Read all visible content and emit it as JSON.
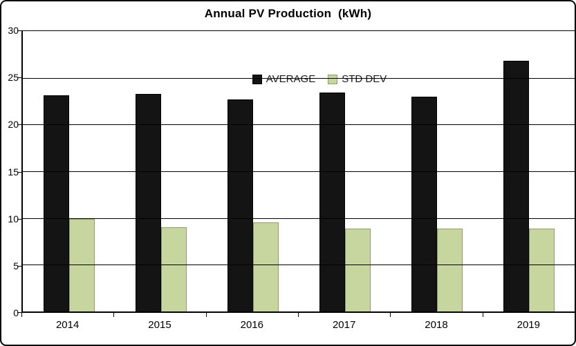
{
  "title": "Annual PV Production  (kWh)",
  "legend": {
    "items": [
      {
        "label": "AVERAGE",
        "color": "#141414",
        "border": "#000000"
      },
      {
        "label": "STD DEV",
        "color": "#c6d69e",
        "border": "#8f9b6c"
      }
    ],
    "position": "top-center"
  },
  "colors": {
    "average_bar": "#141414",
    "std_dev_bar_fill": "#c6d69e",
    "std_dev_bar_border": "#8f9b6c",
    "axis": "#000000",
    "background": "#ffffff"
  },
  "chart_data": {
    "type": "bar",
    "title": "Annual PV Production  (kWh)",
    "categories": [
      "2014",
      "2015",
      "2016",
      "2017",
      "2018",
      "2019"
    ],
    "series": [
      {
        "name": "AVERAGE",
        "color": "#141414",
        "border": "#000000",
        "values": [
          23.1,
          23.3,
          22.7,
          23.4,
          23.0,
          26.8
        ]
      },
      {
        "name": "STD DEV",
        "color": "#c6d69e",
        "border": "#8f9b6c",
        "values": [
          9.9,
          9.0,
          9.5,
          8.9,
          8.9,
          8.9
        ]
      }
    ],
    "xlabel": "",
    "ylabel": "",
    "ylim": [
      0,
      30
    ],
    "yticks": [
      0,
      5,
      10,
      15,
      20,
      25,
      30
    ],
    "grid": true,
    "legend_position": "top-center"
  }
}
